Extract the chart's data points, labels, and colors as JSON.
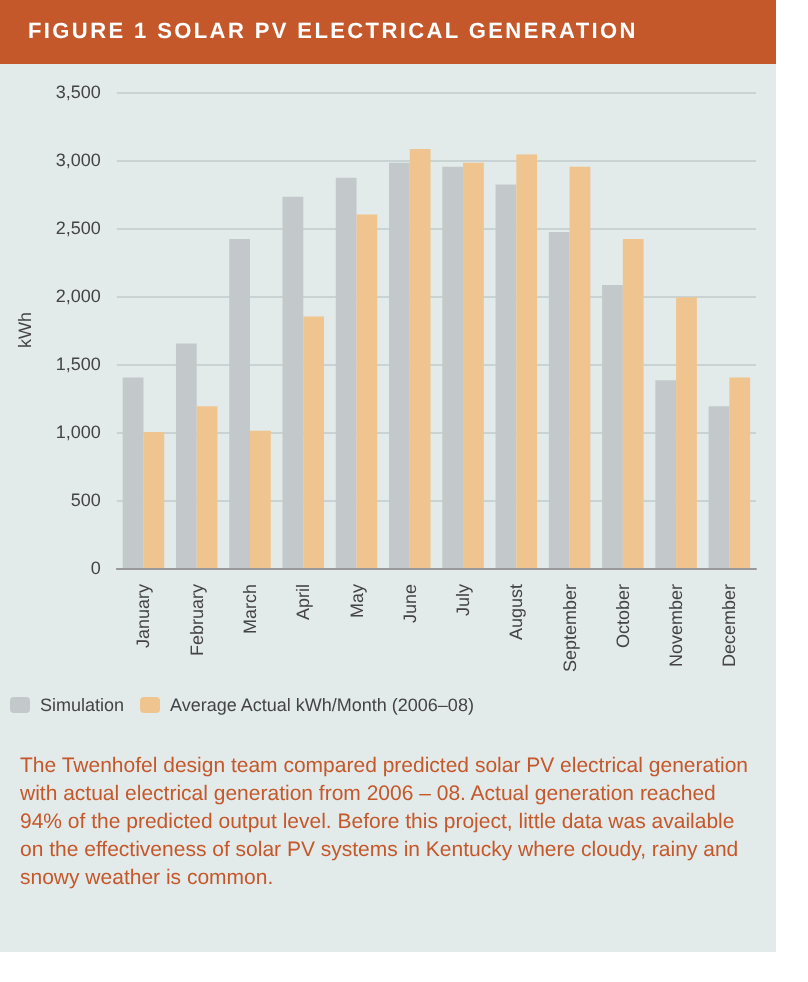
{
  "chart_data": {
    "type": "bar",
    "title": "FIGURE 1  SOLAR PV ELECTRICAL GENERATION",
    "ylabel": "kWh",
    "categories": [
      "January",
      "February",
      "March",
      "April",
      "May",
      "June",
      "July",
      "August",
      "September",
      "October",
      "November",
      "December"
    ],
    "series": [
      {
        "name": "Simulation",
        "color": "#c3c9cb",
        "values": [
          1400,
          1650,
          2420,
          2730,
          2870,
          2980,
          2950,
          2820,
          2470,
          2080,
          1380,
          1190
        ]
      },
      {
        "name": "Average Actual kWh/Month (2006–08)",
        "color": "#f0c48e",
        "values": [
          1000,
          1190,
          1010,
          1850,
          2600,
          3080,
          2980,
          3040,
          2950,
          2420,
          1990,
          1400
        ]
      }
    ],
    "ylim": [
      0,
      3500
    ],
    "yticks": [
      0,
      {
        "value": 500,
        "label": "500"
      },
      {
        "value": 1000,
        "label": "1,000"
      },
      {
        "value": 1500,
        "label": "1,500"
      },
      {
        "value": 2000,
        "label": "2,000"
      },
      {
        "value": 2500,
        "label": "2,500"
      },
      {
        "value": 3000,
        "label": "3,000"
      },
      {
        "value": 3500,
        "label": "3,500"
      }
    ],
    "grid": "y",
    "legend": "bottom",
    "annotations": [
      "The Twenhofel design team compared predicted solar PV electrical generation with actual electrical generation from 2006 – 08. Actual generation reached 94% of the predicted output level. Before this project, little data was available on the effectiveness of solar PV systems in Kentucky where cloudy, rainy and snowy weather is common."
    ]
  }
}
